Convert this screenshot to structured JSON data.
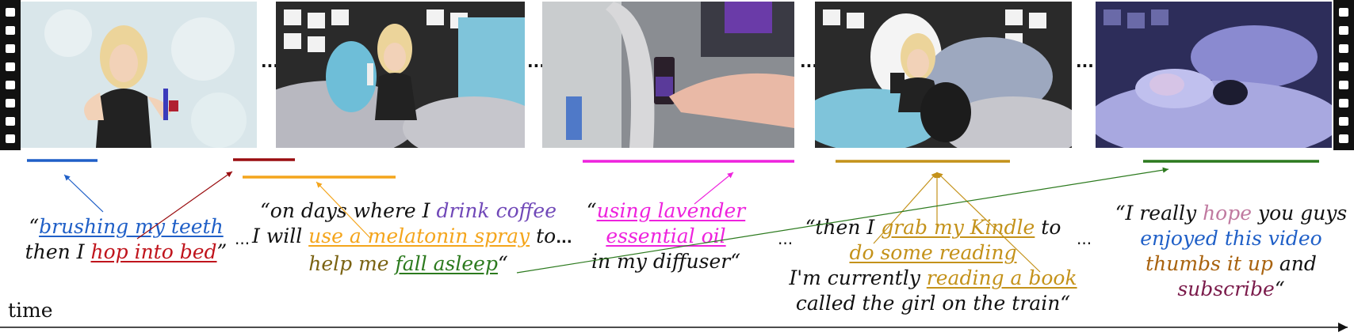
{
  "frames": [
    {
      "id": "f1",
      "desc": "brushing teeth"
    },
    {
      "id": "f2",
      "desc": "on bed with spray"
    },
    {
      "id": "f3",
      "desc": "lavender oil bottle"
    },
    {
      "id": "f4",
      "desc": "reading with dog"
    },
    {
      "id": "f5",
      "desc": "sleeping"
    }
  ],
  "ellipsis": "...",
  "time_label": "time",
  "captions": {
    "c1": {
      "q_open": "“",
      "p1": "brushing my teeth",
      "l2a": "then I ",
      "p2": "hop into bed",
      "q_close": "”"
    },
    "c2": {
      "l1a": "“on days where I ",
      "p1": "drink coffee",
      "l2a": "I will ",
      "p2": "use a melatonin spray",
      "l2b": " to",
      "p3": "help me ",
      "p4": "fall asleep",
      "q_close": "“"
    },
    "c3": {
      "q_open": "“",
      "p1a": "using lavender",
      "p1b": "essential oil",
      "l3": "in my diffuser“"
    },
    "c4": {
      "l1a": "“then I ",
      "p1": "grab my Kindle",
      "l1b": " to",
      "p2": "do some reading",
      "l3a": "I'm currently ",
      "p3": "reading a book",
      "l4": "called the girl on the train“"
    },
    "c5": {
      "l1a": "“I really ",
      "p1": "hope",
      "l1b": " you guys",
      "p2": "enjoyed this video",
      "p3": "thumbs it up",
      "l3b": " and",
      "p4": "subscribe",
      "q_close": "“"
    }
  },
  "colors": {
    "blue": "#1f5fc7",
    "red": "#c0141c",
    "orange": "#f4a51c",
    "magenta": "#ee22dd",
    "gold": "#c4921a",
    "green": "#2c7a1e",
    "purple": "#7048b8",
    "olive": "#7a6212",
    "pink": "#c07aa0",
    "brown": "#a8620e",
    "maroon": "#7a1a4a",
    "darkred": "#9a0d10"
  }
}
